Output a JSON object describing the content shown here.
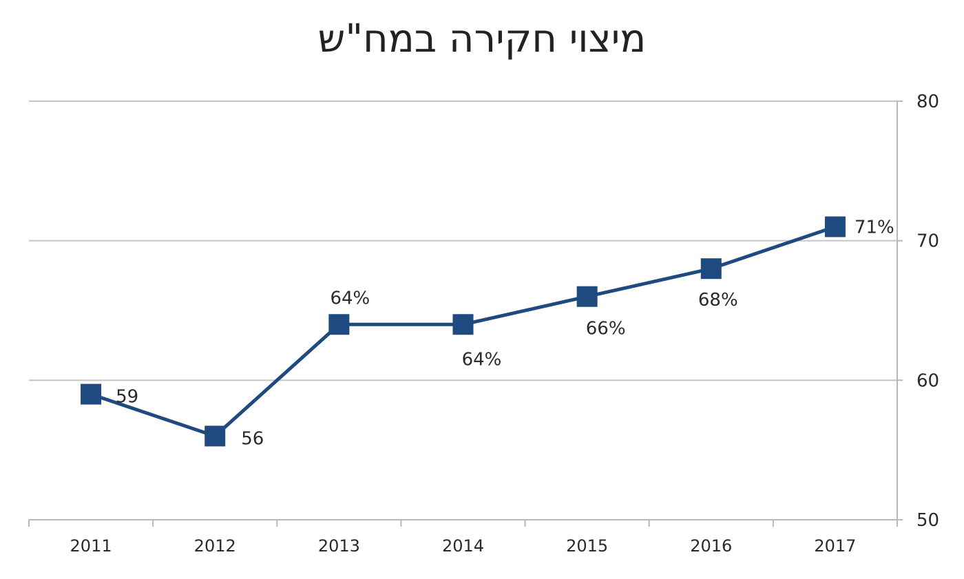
{
  "chart_data": {
    "type": "line",
    "title": "מיצוי חקירה במח\"ש",
    "xlabel": "",
    "ylabel": "",
    "categories": [
      "2011",
      "2012",
      "2013",
      "2014",
      "2015",
      "2016",
      "2017"
    ],
    "series": [
      {
        "values": [
          59,
          56,
          64,
          64,
          66,
          68,
          71
        ],
        "data_labels": [
          "59",
          "56",
          "64%",
          "64%",
          "66%",
          "68%",
          "71%"
        ],
        "color": "#1f4a7f"
      }
    ],
    "ylim": [
      50,
      80
    ],
    "y_ticks": [
      "50",
      "60",
      "70",
      "80"
    ],
    "y_axis_side": "right",
    "grid": true,
    "marker": "square",
    "legend": "none"
  }
}
